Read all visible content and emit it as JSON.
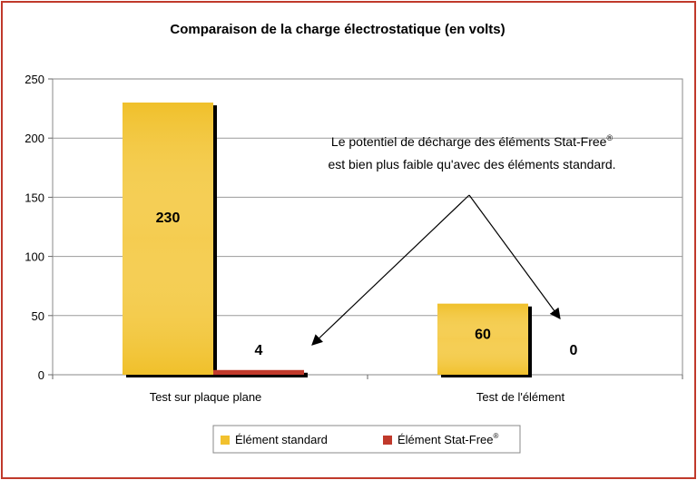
{
  "chart_data": {
    "type": "bar",
    "title": "Comparaison de la charge électrostatique (en volts)",
    "categories": [
      "Test sur plaque plane",
      "Test de l'élément"
    ],
    "series": [
      {
        "name": "Élément standard",
        "values": [
          230,
          60
        ],
        "color": "#f2c12e"
      },
      {
        "name": "Élément Stat-Free",
        "values": [
          4,
          0
        ],
        "color": "#c0392b"
      }
    ],
    "data_labels": [
      [
        "230",
        "4"
      ],
      [
        "60",
        "0"
      ]
    ],
    "ylim": [
      0,
      250
    ],
    "yticks": [
      0,
      50,
      100,
      150,
      200,
      250
    ],
    "grid": true,
    "legend": "bottom-center",
    "annotation": {
      "line1": "Le potentiel de décharge des éléments Stat-Free",
      "line1_sup": "®",
      "line2": "est bien plus faible qu'avec des éléments standard."
    },
    "legend_sup": "®"
  },
  "frame_color": "#c0392b"
}
